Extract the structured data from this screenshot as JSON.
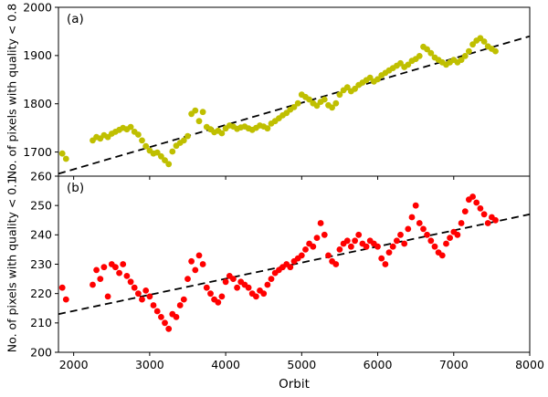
{
  "figure": {
    "xlabel": "Orbit",
    "background": "#ffffff",
    "axis_color": "#000000"
  },
  "chart_data": [
    {
      "type": "scatter",
      "panel_label": "(a)",
      "ylabel": "No. of pixels with quality < 0.8",
      "xlabel": "Orbit",
      "xlim": [
        1800,
        8000
      ],
      "ylim": [
        1650,
        2000
      ],
      "xticks": [
        2000,
        3000,
        4000,
        5000,
        6000,
        7000,
        8000
      ],
      "yticks": [
        1700,
        1800,
        1900,
        2000
      ],
      "marker_color": "#bfbf00",
      "legend": "none",
      "grid": false,
      "trend_line": {
        "style": "dashed",
        "color": "#000000",
        "points": [
          [
            1800,
            1655
          ],
          [
            8000,
            1940
          ]
        ]
      },
      "points": [
        [
          1850,
          1697
        ],
        [
          1900,
          1686
        ],
        [
          2250,
          1724
        ],
        [
          2300,
          1731
        ],
        [
          2350,
          1728
        ],
        [
          2400,
          1735
        ],
        [
          2450,
          1731
        ],
        [
          2500,
          1738
        ],
        [
          2550,
          1742
        ],
        [
          2600,
          1746
        ],
        [
          2650,
          1750
        ],
        [
          2700,
          1747
        ],
        [
          2750,
          1752
        ],
        [
          2800,
          1742
        ],
        [
          2850,
          1736
        ],
        [
          2900,
          1724
        ],
        [
          2950,
          1712
        ],
        [
          3000,
          1703
        ],
        [
          3050,
          1697
        ],
        [
          3100,
          1699
        ],
        [
          3150,
          1691
        ],
        [
          3200,
          1683
        ],
        [
          3250,
          1675
        ],
        [
          3300,
          1701
        ],
        [
          3350,
          1713
        ],
        [
          3400,
          1719
        ],
        [
          3450,
          1724
        ],
        [
          3500,
          1733
        ],
        [
          3550,
          1779
        ],
        [
          3600,
          1786
        ],
        [
          3650,
          1764
        ],
        [
          3700,
          1783
        ],
        [
          3750,
          1752
        ],
        [
          3800,
          1747
        ],
        [
          3850,
          1741
        ],
        [
          3900,
          1744
        ],
        [
          3950,
          1739
        ],
        [
          4000,
          1749
        ],
        [
          4050,
          1755
        ],
        [
          4100,
          1753
        ],
        [
          4150,
          1748
        ],
        [
          4200,
          1751
        ],
        [
          4250,
          1753
        ],
        [
          4300,
          1749
        ],
        [
          4350,
          1746
        ],
        [
          4400,
          1750
        ],
        [
          4450,
          1755
        ],
        [
          4500,
          1753
        ],
        [
          4550,
          1749
        ],
        [
          4600,
          1759
        ],
        [
          4650,
          1764
        ],
        [
          4700,
          1770
        ],
        [
          4750,
          1776
        ],
        [
          4800,
          1781
        ],
        [
          4850,
          1788
        ],
        [
          4900,
          1793
        ],
        [
          4950,
          1801
        ],
        [
          5000,
          1819
        ],
        [
          5050,
          1814
        ],
        [
          5100,
          1809
        ],
        [
          5150,
          1801
        ],
        [
          5200,
          1796
        ],
        [
          5250,
          1804
        ],
        [
          5300,
          1809
        ],
        [
          5350,
          1797
        ],
        [
          5400,
          1792
        ],
        [
          5450,
          1801
        ],
        [
          5500,
          1819
        ],
        [
          5550,
          1828
        ],
        [
          5600,
          1834
        ],
        [
          5650,
          1826
        ],
        [
          5700,
          1831
        ],
        [
          5750,
          1839
        ],
        [
          5800,
          1844
        ],
        [
          5850,
          1849
        ],
        [
          5900,
          1854
        ],
        [
          5950,
          1846
        ],
        [
          6000,
          1851
        ],
        [
          6050,
          1859
        ],
        [
          6100,
          1864
        ],
        [
          6150,
          1869
        ],
        [
          6200,
          1874
        ],
        [
          6250,
          1879
        ],
        [
          6300,
          1884
        ],
        [
          6350,
          1876
        ],
        [
          6400,
          1881
        ],
        [
          6450,
          1889
        ],
        [
          6500,
          1893
        ],
        [
          6550,
          1899
        ],
        [
          6600,
          1918
        ],
        [
          6650,
          1913
        ],
        [
          6700,
          1905
        ],
        [
          6750,
          1896
        ],
        [
          6800,
          1891
        ],
        [
          6850,
          1886
        ],
        [
          6900,
          1881
        ],
        [
          6950,
          1886
        ],
        [
          7000,
          1891
        ],
        [
          7050,
          1886
        ],
        [
          7100,
          1891
        ],
        [
          7150,
          1899
        ],
        [
          7200,
          1909
        ],
        [
          7250,
          1923
        ],
        [
          7300,
          1931
        ],
        [
          7350,
          1936
        ],
        [
          7400,
          1929
        ],
        [
          7450,
          1919
        ],
        [
          7500,
          1914
        ],
        [
          7550,
          1909
        ]
      ]
    },
    {
      "type": "scatter",
      "panel_label": "(b)",
      "ylabel": "No. of pixels with quality < 0.1",
      "xlabel": "Orbit",
      "xlim": [
        1800,
        8000
      ],
      "ylim": [
        200,
        260
      ],
      "xticks": [
        2000,
        3000,
        4000,
        5000,
        6000,
        7000,
        8000
      ],
      "yticks": [
        200,
        210,
        220,
        230,
        240,
        250,
        260
      ],
      "marker_color": "#ff0000",
      "legend": "none",
      "grid": false,
      "trend_line": {
        "style": "dashed",
        "color": "#000000",
        "points": [
          [
            1800,
            213
          ],
          [
            8000,
            247
          ]
        ]
      },
      "points": [
        [
          1850,
          222
        ],
        [
          1900,
          218
        ],
        [
          2250,
          223
        ],
        [
          2300,
          228
        ],
        [
          2350,
          225
        ],
        [
          2400,
          229
        ],
        [
          2450,
          219
        ],
        [
          2500,
          230
        ],
        [
          2550,
          229
        ],
        [
          2600,
          227
        ],
        [
          2650,
          230
        ],
        [
          2700,
          226
        ],
        [
          2750,
          224
        ],
        [
          2800,
          222
        ],
        [
          2850,
          220
        ],
        [
          2900,
          218
        ],
        [
          2950,
          221
        ],
        [
          3000,
          219
        ],
        [
          3050,
          216
        ],
        [
          3100,
          214
        ],
        [
          3150,
          212
        ],
        [
          3200,
          210
        ],
        [
          3250,
          208
        ],
        [
          3300,
          213
        ],
        [
          3350,
          212
        ],
        [
          3400,
          216
        ],
        [
          3450,
          218
        ],
        [
          3500,
          225
        ],
        [
          3550,
          231
        ],
        [
          3600,
          228
        ],
        [
          3650,
          233
        ],
        [
          3700,
          230
        ],
        [
          3750,
          222
        ],
        [
          3800,
          220
        ],
        [
          3850,
          218
        ],
        [
          3900,
          217
        ],
        [
          3950,
          219
        ],
        [
          4000,
          224
        ],
        [
          4050,
          226
        ],
        [
          4100,
          225
        ],
        [
          4150,
          222
        ],
        [
          4200,
          224
        ],
        [
          4250,
          223
        ],
        [
          4300,
          222
        ],
        [
          4350,
          220
        ],
        [
          4400,
          219
        ],
        [
          4450,
          221
        ],
        [
          4500,
          220
        ],
        [
          4550,
          223
        ],
        [
          4600,
          225
        ],
        [
          4650,
          227
        ],
        [
          4700,
          228
        ],
        [
          4750,
          229
        ],
        [
          4800,
          230
        ],
        [
          4850,
          229
        ],
        [
          4900,
          231
        ],
        [
          4950,
          232
        ],
        [
          5000,
          233
        ],
        [
          5050,
          235
        ],
        [
          5100,
          237
        ],
        [
          5150,
          236
        ],
        [
          5200,
          239
        ],
        [
          5250,
          244
        ],
        [
          5300,
          240
        ],
        [
          5350,
          233
        ],
        [
          5400,
          231
        ],
        [
          5450,
          230
        ],
        [
          5500,
          235
        ],
        [
          5550,
          237
        ],
        [
          5600,
          238
        ],
        [
          5650,
          236
        ],
        [
          5700,
          238
        ],
        [
          5750,
          240
        ],
        [
          5800,
          237
        ],
        [
          5850,
          236
        ],
        [
          5900,
          238
        ],
        [
          5950,
          237
        ],
        [
          6000,
          236
        ],
        [
          6050,
          232
        ],
        [
          6100,
          230
        ],
        [
          6150,
          234
        ],
        [
          6200,
          236
        ],
        [
          6250,
          238
        ],
        [
          6300,
          240
        ],
        [
          6350,
          237
        ],
        [
          6400,
          242
        ],
        [
          6450,
          246
        ],
        [
          6500,
          250
        ],
        [
          6550,
          244
        ],
        [
          6600,
          242
        ],
        [
          6650,
          240
        ],
        [
          6700,
          238
        ],
        [
          6750,
          236
        ],
        [
          6800,
          234
        ],
        [
          6850,
          233
        ],
        [
          6900,
          237
        ],
        [
          6950,
          239
        ],
        [
          7000,
          241
        ],
        [
          7050,
          240
        ],
        [
          7100,
          244
        ],
        [
          7150,
          248
        ],
        [
          7200,
          252
        ],
        [
          7250,
          253
        ],
        [
          7300,
          251
        ],
        [
          7350,
          249
        ],
        [
          7400,
          247
        ],
        [
          7450,
          244
        ],
        [
          7500,
          246
        ],
        [
          7550,
          245
        ]
      ]
    }
  ]
}
